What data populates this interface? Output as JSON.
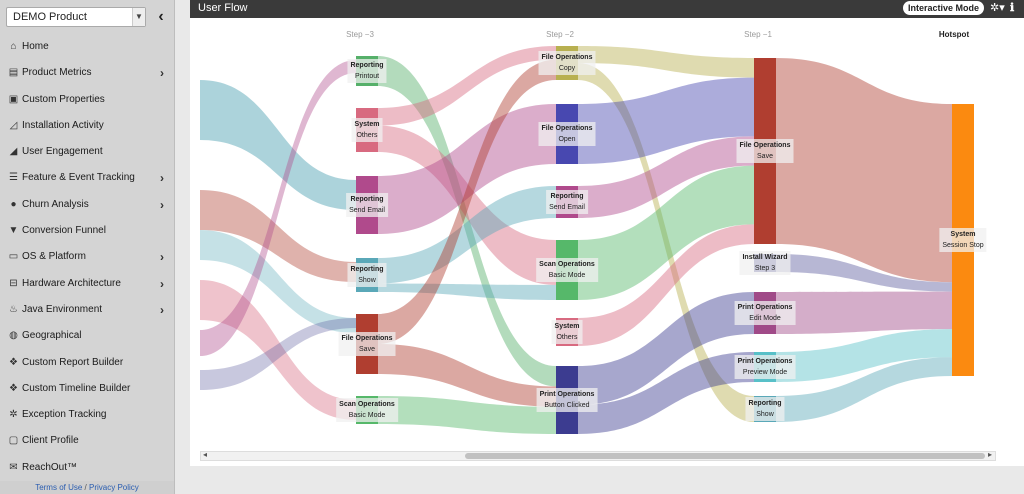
{
  "product_select": {
    "value": "DEMO Product"
  },
  "nav": [
    {
      "label": "Home",
      "icon": "home-icon",
      "glyph": "⌂",
      "chevron": false
    },
    {
      "label": "Product Metrics",
      "icon": "bar-chart-icon",
      "glyph": "▤",
      "chevron": true
    },
    {
      "label": "Custom Properties",
      "icon": "id-card-icon",
      "glyph": "▣",
      "chevron": false
    },
    {
      "label": "Installation Activity",
      "icon": "line-chart-icon",
      "glyph": "◿",
      "chevron": false
    },
    {
      "label": "User Engagement",
      "icon": "area-chart-icon",
      "glyph": "◢",
      "chevron": false
    },
    {
      "label": "Feature & Event Tracking",
      "icon": "list-icon",
      "glyph": "☰",
      "chevron": true
    },
    {
      "label": "Churn Analysis",
      "icon": "user-minus-icon",
      "glyph": "●",
      "chevron": true
    },
    {
      "label": "Conversion Funnel",
      "icon": "funnel-icon",
      "glyph": "▼",
      "chevron": false
    },
    {
      "label": "OS & Platform",
      "icon": "desktop-icon",
      "glyph": "▭",
      "chevron": true
    },
    {
      "label": "Hardware Architecture",
      "icon": "hdd-icon",
      "glyph": "⊟",
      "chevron": true
    },
    {
      "label": "Java Environment",
      "icon": "java-icon",
      "glyph": "♨",
      "chevron": true
    },
    {
      "label": "Geographical",
      "icon": "globe-icon",
      "glyph": "◍",
      "chevron": false
    },
    {
      "label": "Custom Report Builder",
      "icon": "cubes-icon",
      "glyph": "❖",
      "chevron": false
    },
    {
      "label": "Custom Timeline Builder",
      "icon": "timeline-icon",
      "glyph": "❖",
      "chevron": false
    },
    {
      "label": "Exception Tracking",
      "icon": "gear-icon",
      "glyph": "✲",
      "chevron": false
    },
    {
      "label": "Client Profile",
      "icon": "profile-icon",
      "glyph": "▢",
      "chevron": false
    },
    {
      "label": "ReachOut™",
      "icon": "envelope-icon",
      "glyph": "✉",
      "chevron": false
    }
  ],
  "footer": {
    "terms": "Terms of Use",
    "separator": "/",
    "privacy": "Privacy Policy"
  },
  "panel": {
    "title": "User Flow",
    "mode_toggle": "Interactive Mode",
    "gear_glyph": "✲▾",
    "info_glyph": "ℹ"
  },
  "steps": [
    "Step −3",
    "Step −2",
    "Step −1",
    "Hotspot"
  ],
  "colors": {
    "printout": "#56b06a",
    "others": "#d86a80",
    "send_email": "#b04a8c",
    "show": "#5aa8b8",
    "save": "#b03e30",
    "basic_mode": "#56b86a",
    "copy": "#b8b050",
    "open": "#4848b0",
    "print_button": "#3c3c90",
    "install": "#6060a0",
    "edit_mode": "#a04a88",
    "preview": "#58c0c8",
    "session_stop": "#fb8a10"
  },
  "nodes": [
    {
      "id": "s3_printout",
      "col": 0,
      "category": "Reporting",
      "action": "Printout",
      "color": "printout"
    },
    {
      "id": "s3_others",
      "col": 0,
      "category": "System",
      "action": "Others",
      "color": "others"
    },
    {
      "id": "s3_email",
      "col": 0,
      "category": "Reporting",
      "action": "Send Email",
      "color": "send_email"
    },
    {
      "id": "s3_show",
      "col": 0,
      "category": "Reporting",
      "action": "Show",
      "color": "show"
    },
    {
      "id": "s3_save",
      "col": 0,
      "category": "File Operations",
      "action": "Save",
      "color": "save"
    },
    {
      "id": "s3_basic",
      "col": 0,
      "category": "Scan Operations",
      "action": "Basic Mode",
      "color": "basic_mode"
    },
    {
      "id": "s2_copy",
      "col": 1,
      "category": "File Operations",
      "action": "Copy",
      "color": "copy"
    },
    {
      "id": "s2_open",
      "col": 1,
      "category": "File Operations",
      "action": "Open",
      "color": "open"
    },
    {
      "id": "s2_email",
      "col": 1,
      "category": "Reporting",
      "action": "Send Email",
      "color": "send_email"
    },
    {
      "id": "s2_basic",
      "col": 1,
      "category": "Scan Operations",
      "action": "Basic Mode",
      "color": "basic_mode"
    },
    {
      "id": "s2_others",
      "col": 1,
      "category": "System",
      "action": "Others",
      "color": "others"
    },
    {
      "id": "s2_print",
      "col": 1,
      "category": "Print Operations",
      "action": "Button Clicked",
      "color": "print_button"
    },
    {
      "id": "s1_save",
      "col": 2,
      "category": "File Operations",
      "action": "Save",
      "color": "save"
    },
    {
      "id": "s1_install",
      "col": 2,
      "category": "Install Wizard",
      "action": "Step 3",
      "color": "install"
    },
    {
      "id": "s1_edit",
      "col": 2,
      "category": "Print Operations",
      "action": "Edit Mode",
      "color": "edit_mode"
    },
    {
      "id": "s1_preview",
      "col": 2,
      "category": "Print Operations",
      "action": "Preview Mode",
      "color": "preview"
    },
    {
      "id": "s1_show",
      "col": 2,
      "category": "Reporting",
      "action": "Show",
      "color": "show"
    },
    {
      "id": "hot",
      "col": 3,
      "category": "System",
      "action": "Session Stop",
      "color": "session_stop"
    }
  ],
  "links": [
    {
      "source": "s3_printout",
      "target": "s2_print",
      "value": 3
    },
    {
      "source": "s3_others",
      "target": "s2_copy",
      "value": 2
    },
    {
      "source": "s3_others",
      "target": "s2_basic",
      "value": 3
    },
    {
      "source": "s3_email",
      "target": "s2_open",
      "value": 6
    },
    {
      "source": "s3_show",
      "target": "s2_email",
      "value": 3
    },
    {
      "source": "s3_show",
      "target": "s2_basic",
      "value": 1
    },
    {
      "source": "s3_save",
      "target": "s2_copy",
      "value": 3
    },
    {
      "source": "s3_save",
      "target": "s2_print",
      "value": 3
    },
    {
      "source": "s3_basic",
      "target": "s2_print",
      "value": 4
    },
    {
      "source": "s2_copy",
      "target": "s1_save",
      "value": 2
    },
    {
      "source": "s2_copy",
      "target": "s1_show",
      "value": 2
    },
    {
      "source": "s2_open",
      "target": "s1_save",
      "value": 6
    },
    {
      "source": "s2_email",
      "target": "s1_save",
      "value": 3
    },
    {
      "source": "s2_basic",
      "target": "s1_save",
      "value": 6
    },
    {
      "source": "s2_others",
      "target": "s1_save",
      "value": 2
    },
    {
      "source": "s2_print",
      "target": "s1_edit",
      "value": 4
    },
    {
      "source": "s2_print",
      "target": "s1_preview",
      "value": 3
    },
    {
      "source": "s1_save",
      "target": "hot",
      "value": 19
    },
    {
      "source": "s1_install",
      "target": "hot",
      "value": 1
    },
    {
      "source": "s1_edit",
      "target": "hot",
      "value": 4
    },
    {
      "source": "s1_preview",
      "target": "hot",
      "value": 3
    },
    {
      "source": "s1_show",
      "target": "hot",
      "value": 2
    }
  ]
}
